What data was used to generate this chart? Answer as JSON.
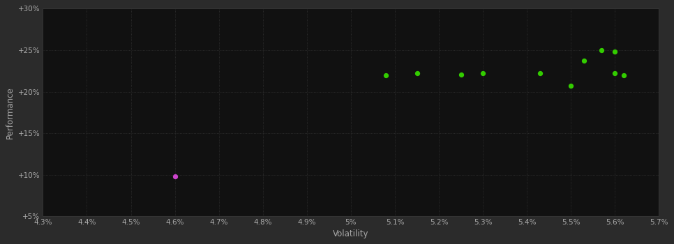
{
  "background_color": "#2b2b2b",
  "plot_bg_color": "#111111",
  "text_color": "#aaaaaa",
  "xlabel": "Volatility",
  "ylabel": "Performance",
  "xlim": [
    0.043,
    0.057
  ],
  "ylim": [
    0.05,
    0.3
  ],
  "xticks": [
    0.043,
    0.044,
    0.045,
    0.046,
    0.047,
    0.048,
    0.049,
    0.05,
    0.051,
    0.052,
    0.053,
    0.054,
    0.055,
    0.056,
    0.057
  ],
  "yticks": [
    0.05,
    0.1,
    0.15,
    0.2,
    0.25,
    0.3
  ],
  "ytick_labels": [
    "+5%",
    "+10%",
    "+15%",
    "+20%",
    "+25%",
    "+30%"
  ],
  "xtick_labels": [
    "4.3%",
    "4.4%",
    "4.5%",
    "4.6%",
    "4.7%",
    "4.8%",
    "4.9%",
    "5%",
    "5.1%",
    "5.2%",
    "5.3%",
    "5.4%",
    "5.5%",
    "5.6%",
    "5.7%"
  ],
  "green_points": [
    [
      0.0508,
      0.22
    ],
    [
      0.0515,
      0.222
    ],
    [
      0.0525,
      0.221
    ],
    [
      0.053,
      0.222
    ],
    [
      0.0543,
      0.222
    ],
    [
      0.055,
      0.207
    ],
    [
      0.0553,
      0.237
    ],
    [
      0.0557,
      0.25
    ],
    [
      0.056,
      0.248
    ],
    [
      0.056,
      0.222
    ],
    [
      0.0562,
      0.22
    ]
  ],
  "magenta_points": [
    [
      0.046,
      0.098
    ]
  ],
  "dot_size": 18,
  "green_color": "#33cc00",
  "magenta_color": "#cc44cc",
  "grid_color": "#333333",
  "grid_linestyle": ":",
  "grid_linewidth": 0.6,
  "font_size_ticks": 7.5,
  "font_size_labels": 8.5
}
